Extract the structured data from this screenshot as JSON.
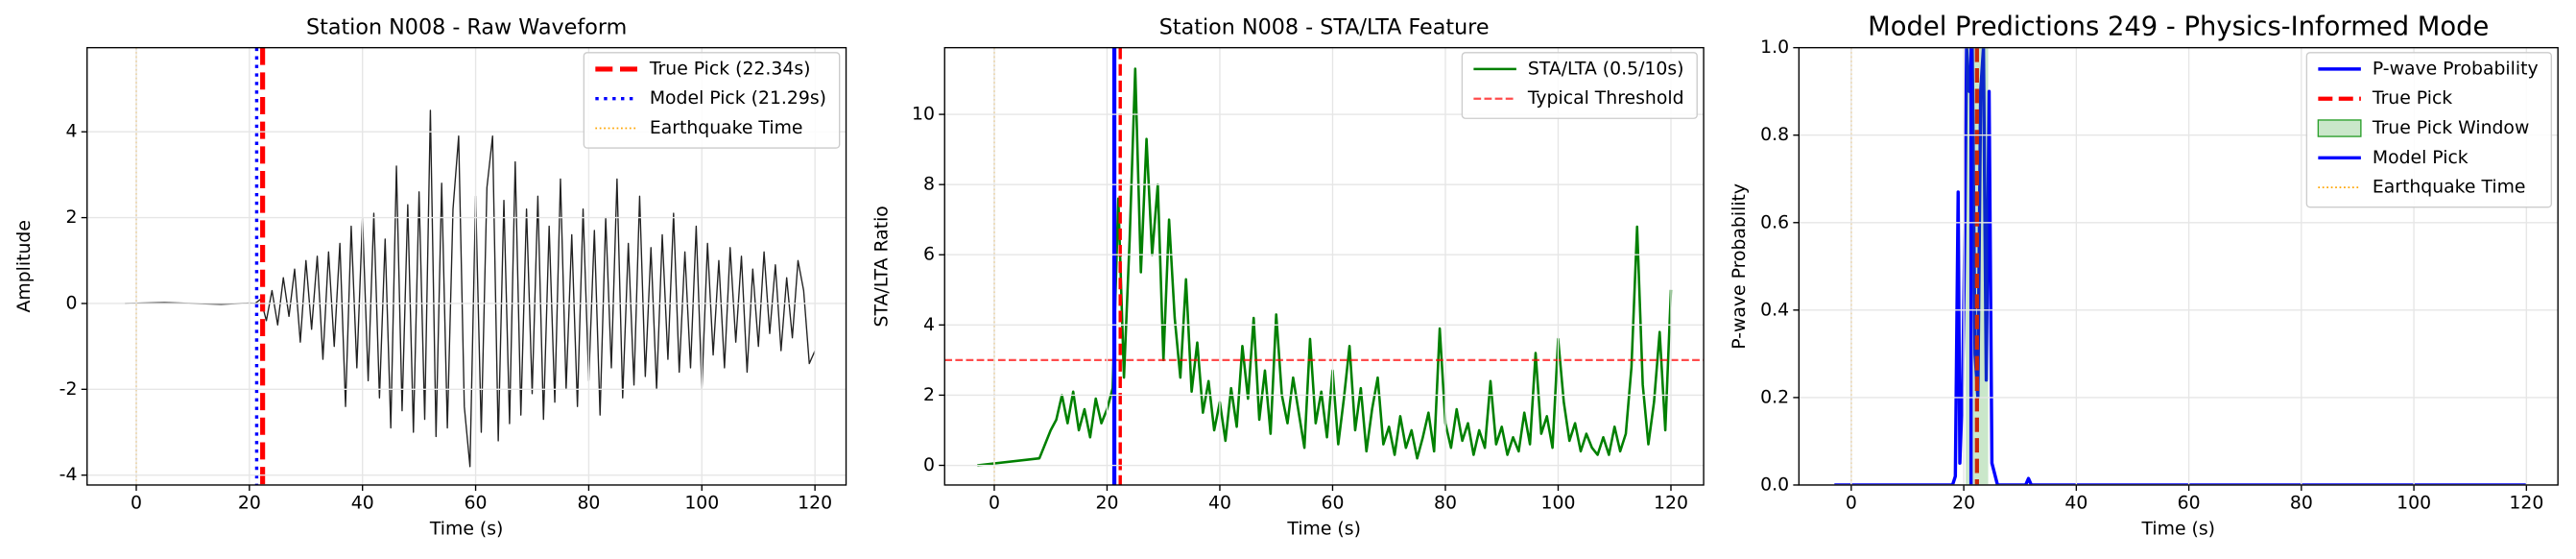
{
  "chart_data": [
    {
      "type": "line",
      "title": "Station N008 - Raw Waveform",
      "xlabel": "Time (s)",
      "ylabel": "Amplitude",
      "xlim": [
        -8.7,
        125.5
      ],
      "ylim": [
        -4.23,
        5.96
      ],
      "xticks": [
        0,
        20,
        40,
        60,
        80,
        100,
        120
      ],
      "yticks": [
        -4,
        -2,
        0,
        2,
        4
      ],
      "grid": true,
      "legend": "upper right",
      "marks": [
        {
          "type": "line",
          "name": null,
          "color": "#222222",
          "width": 0.8,
          "style": "solid",
          "x": [
            -2,
            5,
            10,
            15,
            20,
            21,
            22,
            23,
            24,
            25,
            26,
            27,
            28,
            29,
            30,
            31,
            32,
            33,
            34,
            35,
            36,
            37,
            38,
            39,
            40,
            41,
            42,
            43,
            44,
            45,
            46,
            47,
            48,
            49,
            50,
            51,
            52,
            53,
            54,
            55,
            56,
            57,
            58,
            59,
            60,
            61,
            62,
            63,
            64,
            65,
            66,
            67,
            68,
            69,
            70,
            71,
            72,
            73,
            74,
            75,
            76,
            77,
            78,
            79,
            80,
            81,
            82,
            83,
            84,
            85,
            86,
            87,
            88,
            89,
            90,
            91,
            92,
            93,
            94,
            95,
            96,
            97,
            98,
            99,
            100,
            101,
            102,
            103,
            104,
            105,
            106,
            107,
            108,
            109,
            110,
            111,
            112,
            113,
            114,
            115,
            116,
            117,
            118,
            119,
            120
          ],
          "values": [
            0,
            0.02,
            0,
            -0.02,
            0.01,
            0,
            0.1,
            -0.4,
            0.3,
            -0.5,
            0.6,
            -0.3,
            0.8,
            -0.9,
            1.0,
            -0.6,
            1.1,
            -1.3,
            1.2,
            -1.0,
            1.4,
            -2.4,
            1.8,
            -1.5,
            2.0,
            -1.8,
            2.1,
            -2.2,
            1.5,
            -2.9,
            3.2,
            -2.5,
            2.3,
            -3.0,
            2.6,
            -2.7,
            4.5,
            -3.1,
            2.8,
            -2.9,
            2.2,
            3.9,
            -2.4,
            -3.8,
            2.5,
            -3.0,
            2.7,
            3.9,
            -3.2,
            2.4,
            -2.8,
            3.3,
            -2.6,
            2.2,
            -2.1,
            2.5,
            -2.7,
            1.8,
            -2.3,
            2.9,
            -2.0,
            1.6,
            -2.4,
            2.2,
            -1.8,
            1.7,
            -2.6,
            2.0,
            -1.5,
            2.9,
            -2.2,
            1.4,
            -1.9,
            2.5,
            -1.7,
            1.3,
            -2.0,
            1.6,
            -1.3,
            2.1,
            -1.6,
            1.2,
            -1.5,
            1.8,
            -2.0,
            1.4,
            -1.2,
            1.0,
            -1.5,
            1.3,
            -0.9,
            1.1,
            -1.6,
            0.8,
            -1.0,
            1.2,
            -0.7,
            0.9,
            -1.1,
            0.6,
            -0.8,
            1.0,
            0.3,
            -1.4,
            -1.1
          ]
        },
        {
          "type": "vline",
          "name": "True Pick (22.34s)",
          "x": 22.34,
          "color": "#ff0000",
          "width": 3,
          "style": "dashed",
          "legend": true
        },
        {
          "type": "vline",
          "name": "Model Pick (21.29s)",
          "x": 21.29,
          "color": "#0000ff",
          "width": 2,
          "style": "dotted",
          "legend": true
        },
        {
          "type": "vline",
          "name": "Earthquake Time",
          "x": 0,
          "color": "#ffa500",
          "width": 1,
          "style": "dotted",
          "legend": true
        }
      ]
    },
    {
      "type": "line",
      "title": "Station N008 - STA/LTA Feature",
      "xlabel": "Time (s)",
      "ylabel": "STA/LTA Ratio",
      "xlim": [
        -8.8,
        125.8
      ],
      "ylim": [
        -0.56,
        11.9
      ],
      "xticks": [
        0,
        20,
        40,
        60,
        80,
        100,
        120
      ],
      "yticks": [
        0,
        2,
        4,
        6,
        8,
        10
      ],
      "grid": true,
      "legend": "upper right",
      "marks": [
        {
          "type": "line",
          "name": "STA/LTA (0.5/10s)",
          "color": "#008000",
          "width": 1.5,
          "style": "solid",
          "legend": true,
          "x": [
            -3,
            8,
            9,
            10,
            11,
            12,
            13,
            14,
            15,
            16,
            17,
            18,
            19,
            20,
            21,
            22,
            23,
            24,
            25,
            26,
            27,
            28,
            29,
            30,
            31,
            32,
            33,
            34,
            35,
            36,
            37,
            38,
            39,
            40,
            41,
            42,
            43,
            44,
            45,
            46,
            47,
            48,
            49,
            50,
            51,
            52,
            53,
            54,
            55,
            56,
            57,
            58,
            59,
            60,
            61,
            62,
            63,
            64,
            65,
            66,
            67,
            68,
            69,
            70,
            71,
            72,
            73,
            74,
            75,
            76,
            77,
            78,
            79,
            80,
            81,
            82,
            83,
            84,
            85,
            86,
            87,
            88,
            89,
            90,
            91,
            92,
            93,
            94,
            95,
            96,
            97,
            98,
            99,
            100,
            101,
            102,
            103,
            104,
            105,
            106,
            107,
            108,
            109,
            110,
            111,
            112,
            113,
            114,
            115,
            116,
            117,
            118,
            119,
            120
          ],
          "values": [
            0,
            0.2,
            0.6,
            1.0,
            1.3,
            2.0,
            1.2,
            2.1,
            1.0,
            1.6,
            0.8,
            1.9,
            1.2,
            1.6,
            2.2,
            7.6,
            2.5,
            6.4,
            11.3,
            5.5,
            9.3,
            6.0,
            8.0,
            3.0,
            7.0,
            4.2,
            2.5,
            5.3,
            2.1,
            3.5,
            1.5,
            2.4,
            1.0,
            1.8,
            0.7,
            2.2,
            1.1,
            3.4,
            1.9,
            4.2,
            1.3,
            2.7,
            0.9,
            4.3,
            2.0,
            1.2,
            2.5,
            1.5,
            0.5,
            3.6,
            1.2,
            2.1,
            0.8,
            2.7,
            0.6,
            1.9,
            3.4,
            1.0,
            2.2,
            0.4,
            1.6,
            2.5,
            0.6,
            1.1,
            0.3,
            1.4,
            0.5,
            1.0,
            0.2,
            0.8,
            1.5,
            0.4,
            3.9,
            1.2,
            0.5,
            1.6,
            0.7,
            1.2,
            0.3,
            1.0,
            0.5,
            2.4,
            0.6,
            1.1,
            0.3,
            0.8,
            0.4,
            1.5,
            0.6,
            3.2,
            0.9,
            1.4,
            0.5,
            3.6,
            1.8,
            0.7,
            1.2,
            0.4,
            0.9,
            0.5,
            0.3,
            0.8,
            0.3,
            1.1,
            0.4,
            0.9,
            2.8,
            6.8,
            2.3,
            0.6,
            1.8,
            3.8,
            1.0,
            5.0
          ]
        },
        {
          "type": "hline",
          "name": "Typical Threshold",
          "y": 3,
          "color": "#ff0000",
          "width": 1.3,
          "style": "dashed",
          "opacity": 0.7,
          "legend": true
        },
        {
          "type": "vline",
          "name": null,
          "x": 21.29,
          "color": "#0000ff",
          "width": 2.5,
          "style": "solid",
          "legend": false
        },
        {
          "type": "vline",
          "name": null,
          "x": 22.34,
          "color": "#ff0000",
          "width": 2,
          "style": "dashed",
          "legend": false
        },
        {
          "type": "vline",
          "name": null,
          "x": 0,
          "color": "#ffa500",
          "width": 1,
          "style": "dotted",
          "legend": false
        }
      ]
    },
    {
      "type": "line",
      "title": "Model Predictions 249 - Physics-Informed Mode",
      "xlabel": "Time (s)",
      "ylabel": "P-wave Probability",
      "xlim": [
        -9.3,
        125.6
      ],
      "ylim": [
        0,
        1
      ],
      "xticks": [
        0,
        20,
        40,
        60,
        80,
        100,
        120
      ],
      "yticks": [
        {
          "value": 0,
          "label": "0.0"
        },
        0.2,
        0.4,
        0.6,
        0.8,
        {
          "value": 1,
          "label": "1.0"
        }
      ],
      "grid": true,
      "legend": "upper right",
      "marks": [
        {
          "type": "line",
          "name": "P-wave Probability",
          "color": "#0000ff",
          "width": 2,
          "style": "solid",
          "legend": true,
          "x": [
            -3,
            18,
            18.5,
            19,
            19.3,
            19.8,
            20.2,
            20.5,
            21,
            21.5,
            22,
            22.5,
            23,
            23.5,
            24,
            24.5,
            25,
            26,
            31,
            31.5,
            32,
            120
          ],
          "values": [
            0,
            0,
            0.02,
            0.67,
            0.05,
            0.23,
            0.6,
            1.0,
            0.9,
            1.0,
            0.3,
            0.2,
            0.9,
            1.0,
            0.24,
            0.9,
            0.05,
            0,
            0,
            0.015,
            0,
            0
          ]
        },
        {
          "type": "vline",
          "name": "True Pick",
          "x": 22.34,
          "color": "#ff0000",
          "width": 2.5,
          "style": "dashed",
          "legend": true
        },
        {
          "type": "span",
          "name": "True Pick Window",
          "x0": 20.34,
          "x1": 24.34,
          "color": "#2ca02c",
          "opacity": 0.25,
          "legend": true
        },
        {
          "type": "vline",
          "name": "Model Pick",
          "x": 21.29,
          "color": "#0000ff",
          "width": 2,
          "style": "solid",
          "legend": true
        },
        {
          "type": "vline",
          "name": "Earthquake Time",
          "x": 0,
          "color": "#ffa500",
          "width": 1,
          "style": "dotted",
          "legend": true
        }
      ]
    }
  ]
}
